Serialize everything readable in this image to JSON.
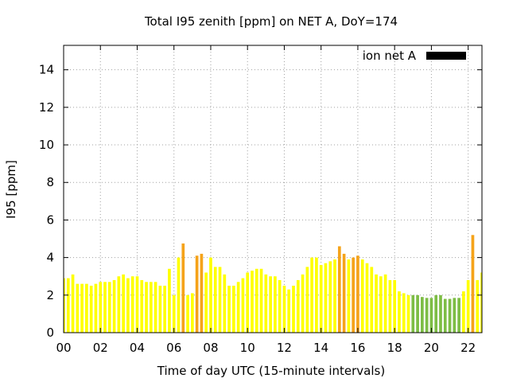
{
  "chart_data": {
    "type": "bar",
    "title": "Total I95 zenith [ppm] on NET A, DoY=174",
    "xlabel": "Time of day UTC (15-minute intervals)",
    "ylabel": "I95 [ppm]",
    "xlim": [
      0,
      22.75
    ],
    "ylim": [
      0,
      15.3
    ],
    "xticks": [
      0,
      2,
      4,
      6,
      8,
      10,
      12,
      14,
      16,
      18,
      20,
      22
    ],
    "xtick_labels": [
      "00",
      "02",
      "04",
      "06",
      "08",
      "10",
      "12",
      "14",
      "16",
      "18",
      "20",
      "22"
    ],
    "yticks": [
      0,
      2,
      4,
      6,
      8,
      10,
      12,
      14
    ],
    "grid": true,
    "legend": {
      "label": "ion net A",
      "color": "#000000",
      "position": "top-right"
    },
    "colors": {
      "yellow": "#ffff00",
      "orange": "#f5a31a",
      "green": "#7dbd45"
    },
    "bar_width_hours": 0.16,
    "series": [
      {
        "name": "ion net A",
        "x": [
          0,
          0.25,
          0.5,
          0.75,
          1,
          1.25,
          1.5,
          1.75,
          2,
          2.25,
          2.5,
          2.75,
          3,
          3.25,
          3.5,
          3.75,
          4,
          4.25,
          4.5,
          4.75,
          5,
          5.25,
          5.5,
          5.75,
          6,
          6.25,
          6.5,
          6.75,
          7,
          7.25,
          7.5,
          7.75,
          8,
          8.25,
          8.5,
          8.75,
          9,
          9.25,
          9.5,
          9.75,
          10,
          10.25,
          10.5,
          10.75,
          11,
          11.25,
          11.5,
          11.75,
          12,
          12.25,
          12.5,
          12.75,
          13,
          13.25,
          13.5,
          13.75,
          14,
          14.25,
          14.5,
          14.75,
          15,
          15.25,
          15.5,
          15.75,
          16,
          16.25,
          16.5,
          16.75,
          17,
          17.25,
          17.5,
          17.75,
          18,
          18.25,
          18.5,
          18.75,
          19,
          19.25,
          19.5,
          19.75,
          20,
          20.25,
          20.5,
          20.75,
          21,
          21.25,
          21.5,
          21.75,
          22,
          22.25,
          22.5,
          22.75
        ],
        "values": [
          2.9,
          2.9,
          3.1,
          2.6,
          2.6,
          2.6,
          2.5,
          2.6,
          2.7,
          2.7,
          2.7,
          2.8,
          3.0,
          3.1,
          2.9,
          3.0,
          3.0,
          2.8,
          2.7,
          2.7,
          2.7,
          2.5,
          2.5,
          3.4,
          2.0,
          4.0,
          4.75,
          2.0,
          2.1,
          4.1,
          4.2,
          3.2,
          4.0,
          3.5,
          3.5,
          3.1,
          2.5,
          2.5,
          2.7,
          2.9,
          3.2,
          3.3,
          3.4,
          3.4,
          3.1,
          3.0,
          3.0,
          2.8,
          2.5,
          2.3,
          2.5,
          2.8,
          3.1,
          3.5,
          4.0,
          4.0,
          3.6,
          3.7,
          3.8,
          3.9,
          4.6,
          4.2,
          3.9,
          4.0,
          4.1,
          3.9,
          3.7,
          3.5,
          3.1,
          3.0,
          3.1,
          2.8,
          2.8,
          2.2,
          2.1,
          2.0,
          2.0,
          2.0,
          1.9,
          1.85,
          1.85,
          2.0,
          2.0,
          1.8,
          1.8,
          1.85,
          1.85,
          2.2,
          2.8,
          5.2,
          2.8,
          3.2
        ],
        "colors": [
          "yellow",
          "yellow",
          "yellow",
          "yellow",
          "yellow",
          "yellow",
          "yellow",
          "yellow",
          "yellow",
          "yellow",
          "yellow",
          "yellow",
          "yellow",
          "yellow",
          "yellow",
          "yellow",
          "yellow",
          "yellow",
          "yellow",
          "yellow",
          "yellow",
          "yellow",
          "yellow",
          "yellow",
          "yellow",
          "yellow",
          "orange",
          "yellow",
          "yellow",
          "orange",
          "orange",
          "yellow",
          "yellow",
          "yellow",
          "yellow",
          "yellow",
          "yellow",
          "yellow",
          "yellow",
          "yellow",
          "yellow",
          "yellow",
          "yellow",
          "yellow",
          "yellow",
          "yellow",
          "yellow",
          "yellow",
          "yellow",
          "yellow",
          "yellow",
          "yellow",
          "yellow",
          "yellow",
          "yellow",
          "yellow",
          "yellow",
          "yellow",
          "yellow",
          "yellow",
          "orange",
          "orange",
          "yellow",
          "orange",
          "orange",
          "yellow",
          "yellow",
          "yellow",
          "yellow",
          "yellow",
          "yellow",
          "yellow",
          "yellow",
          "yellow",
          "yellow",
          "yellow",
          "green",
          "green",
          "green",
          "green",
          "green",
          "green",
          "green",
          "green",
          "green",
          "green",
          "green",
          "yellow",
          "yellow",
          "orange",
          "yellow",
          "yellow"
        ]
      }
    ]
  }
}
